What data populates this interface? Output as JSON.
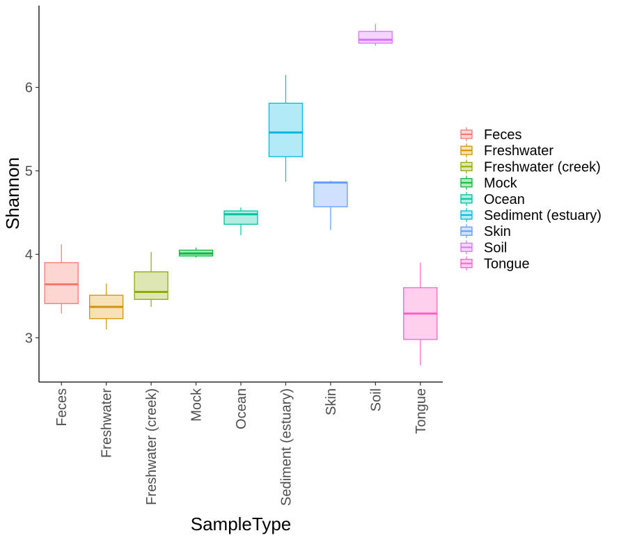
{
  "chart_data": {
    "type": "boxplot",
    "xlabel": "SampleType",
    "ylabel": "Shannon",
    "ylim": [
      2.47,
      6.98
    ],
    "yticks": [
      3,
      4,
      5,
      6
    ],
    "grid": false,
    "legend_position": "right",
    "categories": [
      "Feces",
      "Freshwater",
      "Freshwater (creek)",
      "Mock",
      "Ocean",
      "Sediment (estuary)",
      "Skin",
      "Soil",
      "Tongue"
    ],
    "series": [
      {
        "name": "Feces",
        "color": "#F8766D",
        "fill": "#FDD6D4",
        "min": 3.29,
        "q1": 3.41,
        "median": 3.64,
        "q3": 3.9,
        "max": 4.12
      },
      {
        "name": "Freshwater",
        "color": "#D39200",
        "fill": "#F6E2B6",
        "min": 3.1,
        "q1": 3.23,
        "median": 3.37,
        "q3": 3.51,
        "max": 3.65
      },
      {
        "name": "Freshwater (creek)",
        "color": "#93AA00",
        "fill": "#DEE6B3",
        "min": 3.37,
        "q1": 3.46,
        "median": 3.55,
        "q3": 3.79,
        "max": 4.03
      },
      {
        "name": "Mock",
        "color": "#00BA38",
        "fill": "#B3EAC3",
        "min": 3.96,
        "q1": 3.98,
        "median": 4.01,
        "q3": 4.05,
        "max": 4.08
      },
      {
        "name": "Ocean",
        "color": "#00C19F",
        "fill": "#B3ECE2",
        "min": 4.23,
        "q1": 4.36,
        "median": 4.48,
        "q3": 4.52,
        "max": 4.56
      },
      {
        "name": "Sediment (estuary)",
        "color": "#00B9E3",
        "fill": "#B3EAF7",
        "min": 4.87,
        "q1": 5.17,
        "median": 5.46,
        "q3": 5.81,
        "max": 6.15
      },
      {
        "name": "Skin",
        "color": "#619CFF",
        "fill": "#D0E1FF",
        "min": 4.29,
        "q1": 4.57,
        "median": 4.86,
        "q3": 4.86,
        "max": 4.88
      },
      {
        "name": "Soil",
        "color": "#DB72FB",
        "fill": "#F4D5FE",
        "min": 6.5,
        "q1": 6.53,
        "median": 6.57,
        "q3": 6.67,
        "max": 6.76
      },
      {
        "name": "Tongue",
        "color": "#FF61C3",
        "fill": "#FFD0ED",
        "min": 2.67,
        "q1": 2.98,
        "median": 3.29,
        "q3": 3.6,
        "max": 3.9
      }
    ]
  }
}
